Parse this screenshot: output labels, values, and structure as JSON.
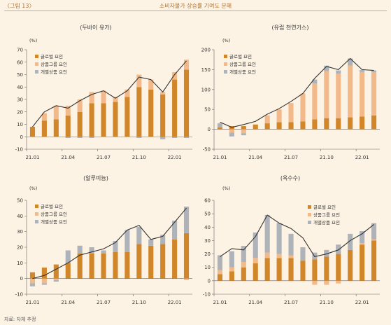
{
  "figure_label": "〈그림 13〉",
  "figure_title": "소비자물가 상승률 기여도 분해",
  "source": "자료: 자체 추정",
  "colors": {
    "global": "#d2862a",
    "group": "#f2b98a",
    "individual": "#aeb3ba",
    "line": "#333333"
  },
  "chart_data": [
    {
      "type": "bar",
      "title": "(두바이 유가)",
      "unit": "(%)",
      "ylim": [
        -10,
        70
      ],
      "yticks": [
        -10,
        0,
        10,
        20,
        30,
        40,
        50,
        60,
        70
      ],
      "x_tick_labels": [
        "21.01",
        "21.04",
        "21.07",
        "21.10",
        "22.01"
      ],
      "legend": [
        "글로벌 요인",
        "상품그룹 요인",
        "개별상품 요인"
      ],
      "legend_position": "top-left",
      "categories": [
        "21.01",
        "21.02",
        "21.03",
        "21.04",
        "21.05",
        "21.06",
        "21.07",
        "21.08",
        "21.09",
        "21.10",
        "21.11",
        "21.12",
        "22.01",
        "22.02"
      ],
      "series": [
        {
          "name": "글로벌 요인",
          "values": [
            8,
            13,
            14,
            17,
            20,
            27,
            27,
            28,
            32,
            40,
            38,
            34,
            46,
            54
          ]
        },
        {
          "name": "상품그룹 요인",
          "values": [
            0,
            6,
            11,
            8,
            10,
            9,
            10,
            4,
            6,
            10,
            8,
            2,
            6,
            8
          ]
        },
        {
          "name": "개별상품 요인",
          "values": [
            0,
            0,
            0,
            -1,
            -1,
            -1,
            0,
            0,
            0,
            -1,
            0,
            -2,
            -1,
            -1
          ]
        }
      ],
      "line_values": [
        8,
        20,
        25,
        23,
        29,
        34,
        37,
        31,
        37,
        48,
        46,
        36,
        50,
        61
      ]
    },
    {
      "type": "bar",
      "title": "(유럽 천연가스)",
      "unit": "(%)",
      "ylim": [
        -50,
        200
      ],
      "yticks": [
        -50,
        0,
        50,
        100,
        150,
        200
      ],
      "x_tick_labels": [
        "21.01",
        "21.04",
        "21.07",
        "21.10",
        "22.01"
      ],
      "legend": [
        "글로벌 요인",
        "상품그룹 요인",
        "개별상품 요인"
      ],
      "legend_position": "top-left",
      "categories": [
        "21.01",
        "21.02",
        "21.03",
        "21.04",
        "21.05",
        "21.06",
        "21.07",
        "21.08",
        "21.09",
        "21.10",
        "21.11",
        "21.12",
        "22.01",
        "22.02"
      ],
      "series": [
        {
          "name": "글로벌 요인",
          "values": [
            5,
            8,
            8,
            12,
            15,
            18,
            18,
            20,
            25,
            28,
            28,
            30,
            32,
            35
          ]
        },
        {
          "name": "상품그룹 요인",
          "values": [
            0,
            -8,
            -10,
            0,
            20,
            32,
            48,
            70,
            90,
            118,
            112,
            130,
            112,
            108
          ]
        },
        {
          "name": "개별상품 요인",
          "values": [
            10,
            -10,
            -5,
            0,
            0,
            0,
            0,
            0,
            10,
            14,
            8,
            18,
            5,
            5
          ]
        }
      ],
      "line_values": [
        18,
        5,
        12,
        20,
        38,
        52,
        70,
        90,
        128,
        158,
        150,
        178,
        150,
        148
      ]
    },
    {
      "type": "bar",
      "title": "(알루미늄)",
      "unit": "(%)",
      "ylim": [
        -10,
        50
      ],
      "yticks": [
        -10,
        0,
        10,
        20,
        30,
        40,
        50
      ],
      "x_tick_labels": [
        "21.01",
        "21.04",
        "21.07",
        "21.10",
        "22.01"
      ],
      "legend": [
        "글로벌 요인",
        "상품그룹 요인",
        "개별상품 요인"
      ],
      "legend_position": "top-left",
      "categories": [
        "21.01",
        "21.02",
        "21.03",
        "21.04",
        "21.05",
        "21.06",
        "21.07",
        "21.08",
        "21.09",
        "21.10",
        "21.11",
        "21.12",
        "22.01",
        "22.02"
      ],
      "series": [
        {
          "name": "글로벌 요인",
          "values": [
            4,
            7,
            9,
            10,
            16,
            16,
            16,
            17,
            17,
            22,
            21,
            22,
            25,
            29
          ]
        },
        {
          "name": "상품그룹 요인",
          "values": [
            -3,
            -3,
            -1,
            0,
            0,
            0,
            0,
            0,
            0,
            0,
            0,
            0,
            0,
            -1
          ]
        },
        {
          "name": "개별상품 요인",
          "values": [
            -2,
            -1,
            -1,
            8,
            5,
            4,
            2,
            7,
            14,
            11,
            4,
            6,
            12,
            17
          ]
        }
      ],
      "line_values": [
        0,
        2,
        6,
        10,
        15,
        17,
        19,
        23,
        31,
        34,
        25,
        27,
        36,
        45
      ]
    },
    {
      "type": "bar",
      "title": "(옥수수)",
      "unit": "(%)",
      "ylim": [
        -10,
        60
      ],
      "yticks": [
        -10,
        0,
        10,
        20,
        30,
        40,
        50,
        60
      ],
      "x_tick_labels": [
        "21.01",
        "21.04",
        "21.07",
        "21.10",
        "22.01"
      ],
      "legend": [
        "글로벌 요인",
        "상품그룹 요인",
        "개별상품 요인"
      ],
      "legend_position": "middle-right",
      "categories": [
        "21.01",
        "21.02",
        "21.03",
        "21.04",
        "21.05",
        "21.06",
        "21.07",
        "21.08",
        "21.09",
        "21.10",
        "21.11",
        "21.12",
        "22.01",
        "22.02"
      ],
      "series": [
        {
          "name": "글로벌 요인",
          "values": [
            5,
            7,
            10,
            13,
            17,
            17,
            17,
            15,
            16,
            18,
            20,
            23,
            27,
            30
          ]
        },
        {
          "name": "상품그룹 요인",
          "values": [
            3,
            3,
            4,
            4,
            4,
            3,
            2,
            0,
            -3,
            -3,
            -2,
            0,
            1,
            1
          ]
        },
        {
          "name": "개별상품 요인",
          "values": [
            11,
            12,
            12,
            19,
            28,
            23,
            16,
            10,
            5,
            5,
            7,
            12,
            9,
            12
          ]
        }
      ],
      "line_values": [
        18,
        24,
        23,
        33,
        49,
        43,
        39,
        32,
        18,
        20,
        23,
        30,
        35,
        42
      ]
    }
  ]
}
